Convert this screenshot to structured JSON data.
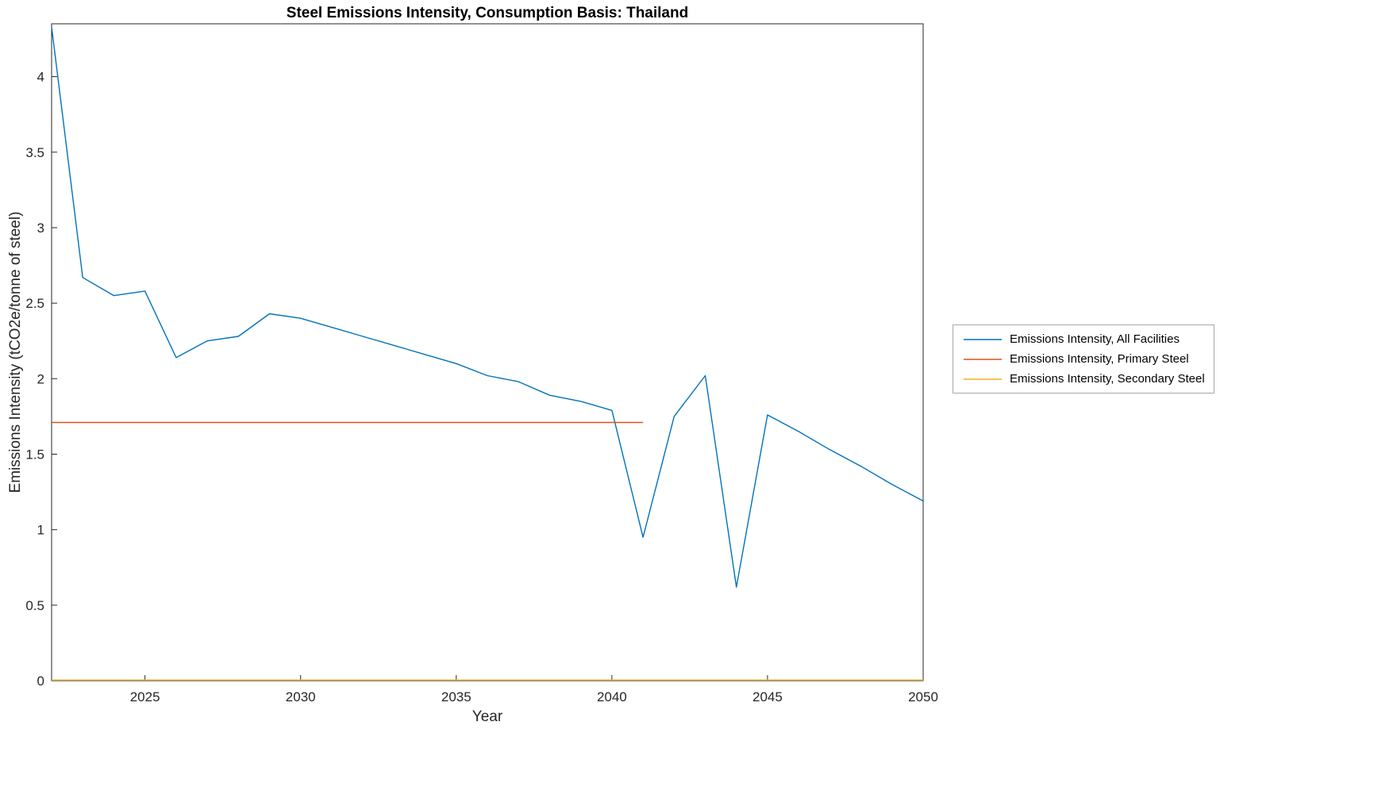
{
  "figure": {
    "background": "#ffffff"
  },
  "chart_data": {
    "type": "line",
    "title": "Steel Emissions Intensity, Consumption Basis: Thailand",
    "xlabel": "Year",
    "ylabel": "Emissions Intensity (tCO2e/tonne of steel)",
    "xlim": [
      2022,
      2050
    ],
    "ylim": [
      0,
      4.35
    ],
    "xticks": [
      2025,
      2030,
      2035,
      2040,
      2045,
      2050
    ],
    "yticks": [
      0,
      0.5,
      1,
      1.5,
      2,
      2.5,
      3,
      3.5,
      4
    ],
    "grid": false,
    "legend_position": "right-outside",
    "axis_color": "#262626",
    "series": [
      {
        "name": "Emissions Intensity, All Facilities",
        "color": "#0072BD",
        "x": [
          2022,
          2023,
          2024,
          2025,
          2026,
          2027,
          2028,
          2029,
          2030,
          2031,
          2032,
          2033,
          2034,
          2035,
          2036,
          2037,
          2038,
          2039,
          2040,
          2041,
          2042,
          2043,
          2044,
          2045,
          2046,
          2047,
          2048,
          2049,
          2050
        ],
        "values": [
          4.33,
          2.67,
          2.55,
          2.58,
          2.14,
          2.25,
          2.28,
          2.43,
          2.4,
          2.34,
          2.28,
          2.22,
          2.16,
          2.1,
          2.02,
          1.98,
          1.89,
          1.85,
          1.79,
          0.95,
          1.75,
          2.02,
          0.62,
          1.76,
          1.65,
          1.53,
          1.42,
          1.3,
          1.19
        ]
      },
      {
        "name": "Emissions Intensity, Primary Steel",
        "color": "#D95319",
        "x": [
          2022,
          2041
        ],
        "values": [
          1.71,
          1.71
        ]
      },
      {
        "name": "Emissions Intensity, Secondary Steel",
        "color": "#EDB120",
        "x": [
          2022,
          2050
        ],
        "values": [
          0.004,
          0.004
        ]
      }
    ]
  }
}
